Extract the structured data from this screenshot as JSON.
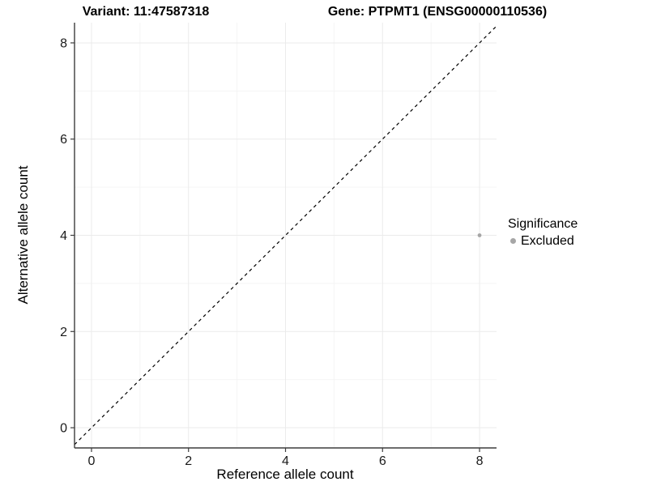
{
  "titles": {
    "variant": "Variant: 11:47587318",
    "gene": "Gene: PTPMT1 (ENSG00000110536)"
  },
  "chart_data": {
    "type": "scatter",
    "xlabel": "Reference allele count",
    "ylabel": "Alternative allele count",
    "xlim": [
      -0.35,
      8.35
    ],
    "ylim": [
      -0.42,
      8.42
    ],
    "xticks": [
      0,
      2,
      4,
      6,
      8
    ],
    "yticks": [
      0,
      2,
      4,
      6,
      8
    ],
    "minor_xticks": [
      1,
      3,
      5,
      7
    ],
    "minor_yticks": [
      1,
      3,
      5,
      7
    ],
    "grid": "on",
    "points": [
      {
        "x": 8,
        "y": 4,
        "significance": "Excluded"
      }
    ],
    "reference_line": {
      "type": "identity y=x",
      "style": "dashed",
      "color": "#000000"
    },
    "legend": {
      "title": "Significance",
      "position": "right",
      "entries": [
        {
          "label": "Excluded",
          "color": "#A6A6A6"
        }
      ]
    }
  },
  "colors": {
    "background": "#FFFFFF",
    "grid_major": "#EBEBEB",
    "grid_minor": "#F5F5F5",
    "axis_line": "#3D3D3D",
    "tick_mark": "#3D3D3D",
    "tick_text": "#1A1A1A",
    "point": "#A6A6A6"
  }
}
